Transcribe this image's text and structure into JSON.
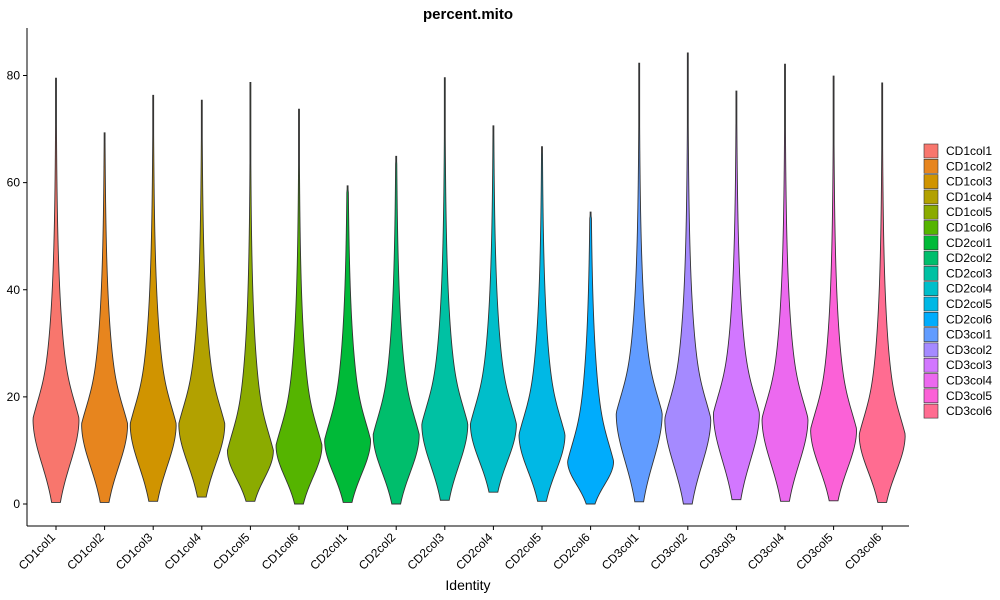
{
  "chart_data": {
    "type": "violin",
    "title": "percent.mito",
    "xlabel": "Identity",
    "ylabel": "",
    "ylim": [
      -4,
      88
    ],
    "yticks": [
      0,
      20,
      40,
      60,
      80
    ],
    "grid": false,
    "legend_position": "right",
    "categories": [
      "CD1col1",
      "CD1col2",
      "CD1col3",
      "CD1col4",
      "CD1col5",
      "CD1col6",
      "CD2col1",
      "CD2col2",
      "CD2col3",
      "CD2col4",
      "CD2col5",
      "CD2col6",
      "CD3col1",
      "CD3col2",
      "CD3col3",
      "CD3col4",
      "CD3col5",
      "CD3col6"
    ],
    "colors": [
      "#F8766D",
      "#E7851E",
      "#D09400",
      "#B2A100",
      "#8BAB00",
      "#55B400",
      "#00BA38",
      "#00BE6C",
      "#00C1A3",
      "#00BECA",
      "#00B8E5",
      "#00ACFC",
      "#619CFF",
      "#A58AFF",
      "#D277FF",
      "#EC69EF",
      "#FB61D7",
      "#FF6C91"
    ],
    "series": [
      {
        "name": "CD1col1",
        "min": 0.3,
        "max": 79.5,
        "mode": 16,
        "spread": 0.47
      },
      {
        "name": "CD1col2",
        "min": 0.3,
        "max": 69.3,
        "mode": 15,
        "spread": 0.43
      },
      {
        "name": "CD1col3",
        "min": 0.5,
        "max": 76.3,
        "mode": 15,
        "spread": 0.46
      },
      {
        "name": "CD1col4",
        "min": 1.3,
        "max": 75.4,
        "mode": 15,
        "spread": 0.45
      },
      {
        "name": "CD1col5",
        "min": 0.5,
        "max": 78.7,
        "mode": 10,
        "spread": 0.45
      },
      {
        "name": "CD1col6",
        "min": 0.0,
        "max": 73.7,
        "mode": 11,
        "spread": 0.43
      },
      {
        "name": "CD2col1",
        "min": 0.3,
        "max": 59.4,
        "mode": 12,
        "spread": 0.45
      },
      {
        "name": "CD2col2",
        "min": 0.0,
        "max": 64.9,
        "mode": 13,
        "spread": 0.46
      },
      {
        "name": "CD2col3",
        "min": 0.7,
        "max": 79.6,
        "mode": 15,
        "spread": 0.45
      },
      {
        "name": "CD2col4",
        "min": 2.2,
        "max": 70.6,
        "mode": 15,
        "spread": 0.46
      },
      {
        "name": "CD2col5",
        "min": 0.5,
        "max": 66.7,
        "mode": 13,
        "spread": 0.45
      },
      {
        "name": "CD2col6",
        "min": 0.0,
        "max": 54.5,
        "mode": 8,
        "spread": 0.46
      },
      {
        "name": "CD3col1",
        "min": 0.4,
        "max": 82.3,
        "mode": 17,
        "spread": 0.45
      },
      {
        "name": "CD3col2",
        "min": 0.0,
        "max": 84.2,
        "mode": 16,
        "spread": 0.47
      },
      {
        "name": "CD3col3",
        "min": 0.8,
        "max": 77.1,
        "mode": 17,
        "spread": 0.46
      },
      {
        "name": "CD3col4",
        "min": 0.5,
        "max": 82.1,
        "mode": 16,
        "spread": 0.46
      },
      {
        "name": "CD3col5",
        "min": 0.6,
        "max": 79.9,
        "mode": 14,
        "spread": 0.44
      },
      {
        "name": "CD3col6",
        "min": 0.3,
        "max": 78.6,
        "mode": 13,
        "spread": 0.45
      }
    ]
  }
}
